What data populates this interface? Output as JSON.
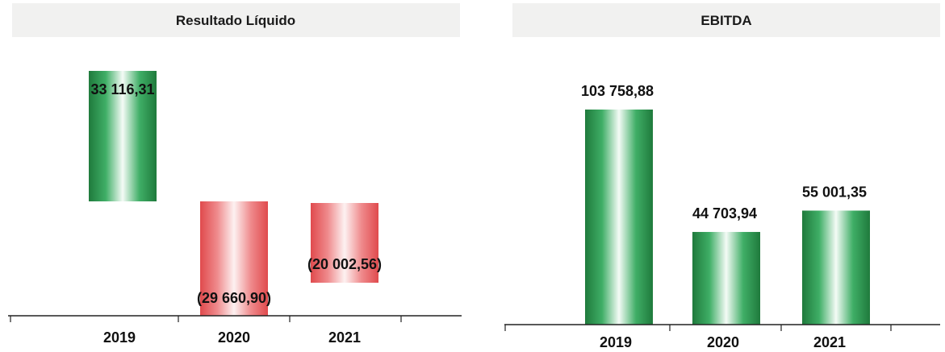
{
  "chart_data": [
    {
      "type": "bar",
      "title": "Resultado Líquido",
      "xlabel": "",
      "ylabel": "",
      "categories": [
        "2019",
        "2020",
        "2021"
      ],
      "values": [
        33116.31,
        -29660.9,
        -20002.56
      ],
      "data_labels": [
        "33 116,31",
        "(29 660,90)",
        "(20 002,56)"
      ],
      "colors": {
        "positive": "#2e9b55",
        "negative": "#e8575a"
      },
      "ylim": [
        -32000,
        34000
      ],
      "grid": false,
      "legend": "none"
    },
    {
      "type": "bar",
      "title": "EBITDA",
      "xlabel": "",
      "ylabel": "",
      "categories": [
        "2019",
        "2020",
        "2021"
      ],
      "values": [
        103758.88,
        44703.94,
        55001.35
      ],
      "data_labels": [
        "103 758,88",
        "44 703,94",
        "55 001,35"
      ],
      "colors": {
        "positive": "#2e9b55"
      },
      "ylim": [
        0,
        115000
      ],
      "grid": false,
      "legend": "none"
    }
  ]
}
